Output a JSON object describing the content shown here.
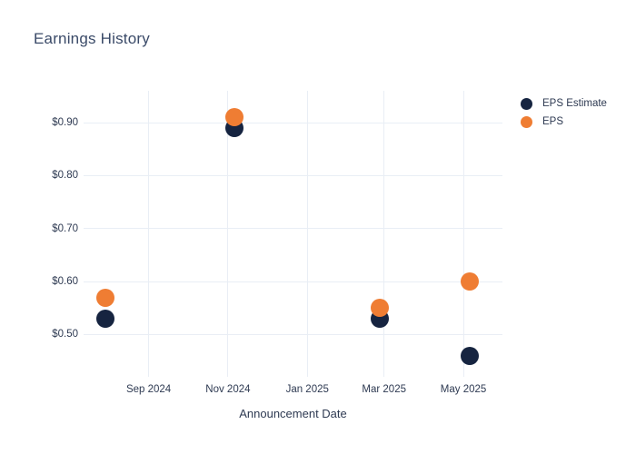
{
  "chart_data": {
    "type": "scatter",
    "title": "Earnings History",
    "xlabel": "Announcement Date",
    "ylabel": "",
    "grid": true,
    "legend_position": "right",
    "x_domain": [
      "2024-07-13",
      "2025-05-31"
    ],
    "ylim": [
      0.42,
      0.96
    ],
    "x_ticks": [
      {
        "date": "2024-09-01",
        "label": "Sep 2024"
      },
      {
        "date": "2024-11-01",
        "label": "Nov 2024"
      },
      {
        "date": "2025-01-01",
        "label": "Jan 2025"
      },
      {
        "date": "2025-03-01",
        "label": "Mar 2025"
      },
      {
        "date": "2025-05-01",
        "label": "May 2025"
      }
    ],
    "y_ticks": [
      {
        "value": 0.9,
        "label": "$0.90"
      },
      {
        "value": 0.8,
        "label": "$0.80"
      },
      {
        "value": 0.7,
        "label": "$0.70"
      },
      {
        "value": 0.6,
        "label": "$0.60"
      },
      {
        "value": 0.5,
        "label": "$0.50"
      }
    ],
    "series": [
      {
        "name": "EPS Estimate",
        "color": "#162440",
        "points": [
          {
            "date": "2024-07-30",
            "value": 0.53
          },
          {
            "date": "2024-11-06",
            "value": 0.89
          },
          {
            "date": "2025-02-26",
            "value": 0.53
          },
          {
            "date": "2025-05-06",
            "value": 0.46
          }
        ]
      },
      {
        "name": "EPS",
        "color": "#ef7d33",
        "points": [
          {
            "date": "2024-07-30",
            "value": 0.57
          },
          {
            "date": "2024-11-06",
            "value": 0.91
          },
          {
            "date": "2025-02-26",
            "value": 0.55
          },
          {
            "date": "2025-05-06",
            "value": 0.6
          }
        ]
      }
    ]
  }
}
